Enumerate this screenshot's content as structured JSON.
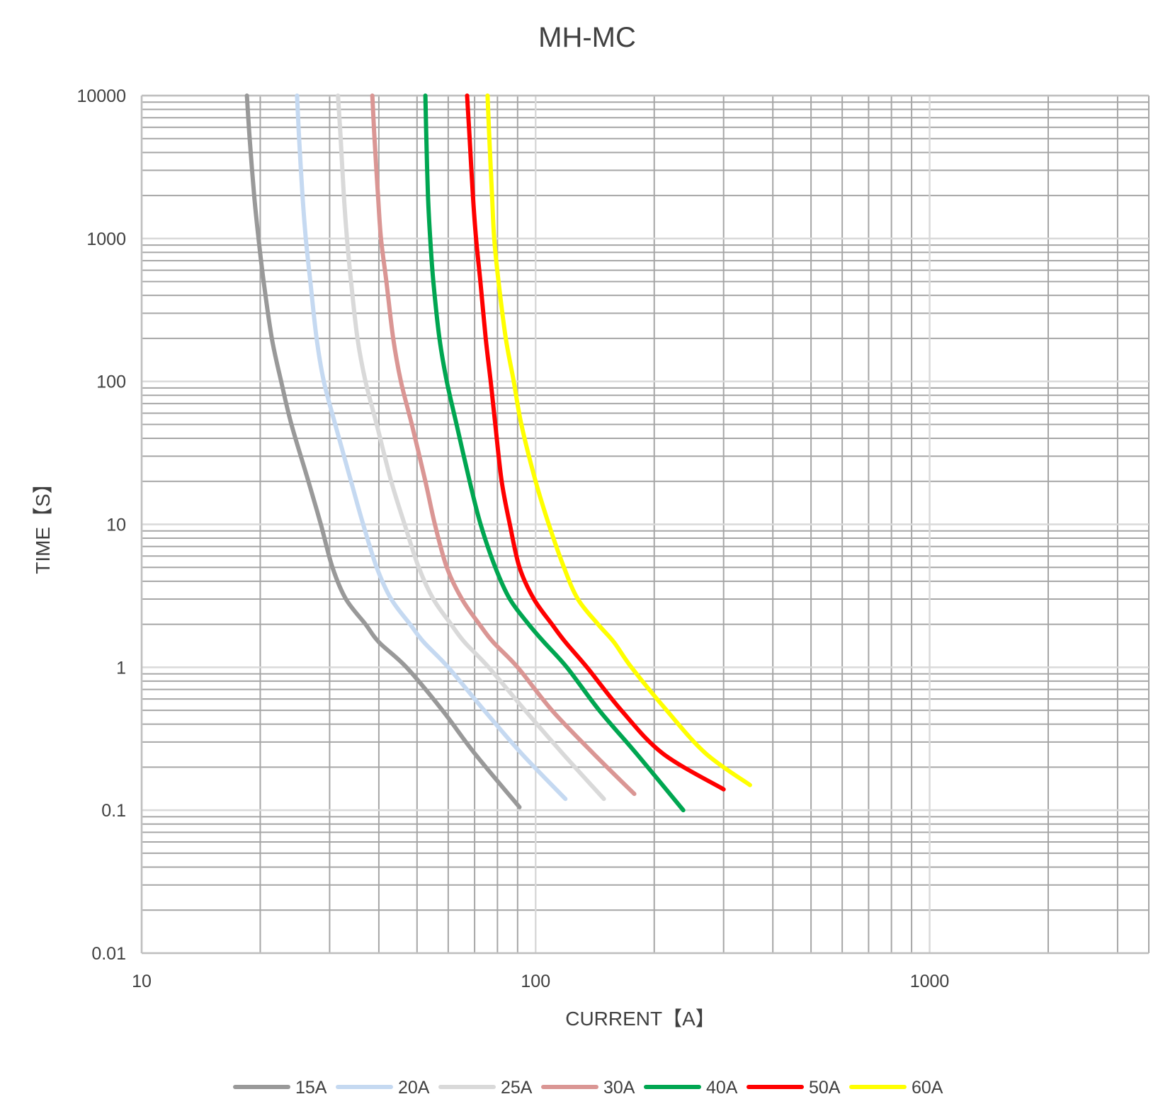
{
  "chart_data": {
    "type": "line",
    "title": "MH-MC",
    "xlabel": "CURRENT【A】",
    "ylabel": "TIME【S】",
    "x_scale": "log",
    "y_scale": "log",
    "xlim": [
      10,
      3600
    ],
    "ylim": [
      0.01,
      10000
    ],
    "x_ticks": [
      {
        "value": 10,
        "label": "10"
      },
      {
        "value": 100,
        "label": "100"
      },
      {
        "value": 1000,
        "label": "1000"
      }
    ],
    "y_ticks": [
      {
        "value": 10000,
        "label": "10000"
      },
      {
        "value": 1000,
        "label": "1000"
      },
      {
        "value": 100,
        "label": "100"
      },
      {
        "value": 10,
        "label": "10"
      },
      {
        "value": 1,
        "label": "1"
      },
      {
        "value": 0.1,
        "label": "0.1"
      },
      {
        "value": 0.01,
        "label": "0.01"
      }
    ],
    "grid": true,
    "legend_position": "bottom",
    "series": [
      {
        "name": "15A",
        "color": "#999999",
        "points": [
          [
            18.5,
            10000
          ],
          [
            18.8,
            5000
          ],
          [
            19.3,
            2000
          ],
          [
            19.8,
            1000
          ],
          [
            20.4,
            500
          ],
          [
            21.4,
            200
          ],
          [
            22.6,
            100
          ],
          [
            24,
            50
          ],
          [
            26.5,
            20
          ],
          [
            28.5,
            10
          ],
          [
            30.5,
            5
          ],
          [
            33,
            3
          ],
          [
            37,
            2
          ],
          [
            40,
            1.5
          ],
          [
            47,
            1
          ],
          [
            58,
            0.5
          ],
          [
            70,
            0.25
          ],
          [
            91,
            0.105
          ]
        ]
      },
      {
        "name": "20A",
        "color": "#C5D9F1",
        "points": [
          [
            24.8,
            10000
          ],
          [
            25.1,
            5000
          ],
          [
            25.6,
            2000
          ],
          [
            26.1,
            1000
          ],
          [
            26.8,
            500
          ],
          [
            27.8,
            200
          ],
          [
            29,
            100
          ],
          [
            31,
            50
          ],
          [
            34,
            20
          ],
          [
            36.5,
            10
          ],
          [
            39.5,
            5
          ],
          [
            43,
            3
          ],
          [
            48,
            2
          ],
          [
            52,
            1.5
          ],
          [
            60,
            1
          ],
          [
            74,
            0.5
          ],
          [
            92,
            0.25
          ],
          [
            119,
            0.12
          ]
        ]
      },
      {
        "name": "25A",
        "color": "#D9D9D9",
        "points": [
          [
            31.5,
            10000
          ],
          [
            32,
            5000
          ],
          [
            32.6,
            2000
          ],
          [
            33.2,
            1000
          ],
          [
            34,
            500
          ],
          [
            35.3,
            200
          ],
          [
            37,
            100
          ],
          [
            39.5,
            50
          ],
          [
            43,
            20
          ],
          [
            46.5,
            10
          ],
          [
            50.5,
            5
          ],
          [
            55,
            3
          ],
          [
            61,
            2
          ],
          [
            66,
            1.5
          ],
          [
            76,
            1
          ],
          [
            94,
            0.5
          ],
          [
            117,
            0.25
          ],
          [
            149,
            0.12
          ]
        ]
      },
      {
        "name": "30A",
        "color": "#DA9694",
        "points": [
          [
            38.5,
            10000
          ],
          [
            39,
            5000
          ],
          [
            39.8,
            2000
          ],
          [
            40.5,
            1000
          ],
          [
            41.8,
            500
          ],
          [
            43.5,
            200
          ],
          [
            45.5,
            100
          ],
          [
            48.5,
            50
          ],
          [
            52.5,
            20
          ],
          [
            55.5,
            10
          ],
          [
            59.5,
            5
          ],
          [
            65,
            3
          ],
          [
            72,
            2
          ],
          [
            78,
            1.5
          ],
          [
            90,
            1
          ],
          [
            110,
            0.5
          ],
          [
            140,
            0.25
          ],
          [
            178,
            0.13
          ]
        ]
      },
      {
        "name": "40A",
        "color": "#00A651",
        "points": [
          [
            52.5,
            10000
          ],
          [
            52.8,
            5000
          ],
          [
            53.3,
            2000
          ],
          [
            54,
            1000
          ],
          [
            55,
            500
          ],
          [
            57,
            200
          ],
          [
            59.5,
            100
          ],
          [
            63,
            50
          ],
          [
            68,
            20
          ],
          [
            72.5,
            10
          ],
          [
            79,
            5
          ],
          [
            86,
            3
          ],
          [
            96,
            2
          ],
          [
            105,
            1.5
          ],
          [
            120,
            1
          ],
          [
            145,
            0.5
          ],
          [
            180,
            0.25
          ],
          [
            237,
            0.1
          ]
        ]
      },
      {
        "name": "50A",
        "color": "#FF0000",
        "points": [
          [
            67,
            10000
          ],
          [
            68,
            5000
          ],
          [
            69.3,
            2000
          ],
          [
            70.6,
            1000
          ],
          [
            72.4,
            500
          ],
          [
            74.7,
            200
          ],
          [
            76.9,
            100
          ],
          [
            79,
            50
          ],
          [
            82,
            20
          ],
          [
            86,
            10
          ],
          [
            91,
            5
          ],
          [
            99,
            3
          ],
          [
            110,
            2
          ],
          [
            119,
            1.5
          ],
          [
            135,
            1
          ],
          [
            165,
            0.5
          ],
          [
            210,
            0.25
          ],
          [
            300,
            0.14
          ]
        ]
      },
      {
        "name": "60A",
        "color": "#FFFF00",
        "points": [
          [
            75.5,
            10000
          ],
          [
            76.3,
            5000
          ],
          [
            77.5,
            2000
          ],
          [
            78.5,
            1000
          ],
          [
            80.5,
            500
          ],
          [
            84,
            200
          ],
          [
            88,
            100
          ],
          [
            92,
            50
          ],
          [
            100,
            20
          ],
          [
            108,
            10
          ],
          [
            118,
            5
          ],
          [
            128,
            3
          ],
          [
            144,
            2
          ],
          [
            158,
            1.5
          ],
          [
            175,
            1
          ],
          [
            215,
            0.5
          ],
          [
            270,
            0.25
          ],
          [
            350,
            0.15
          ]
        ]
      }
    ]
  }
}
